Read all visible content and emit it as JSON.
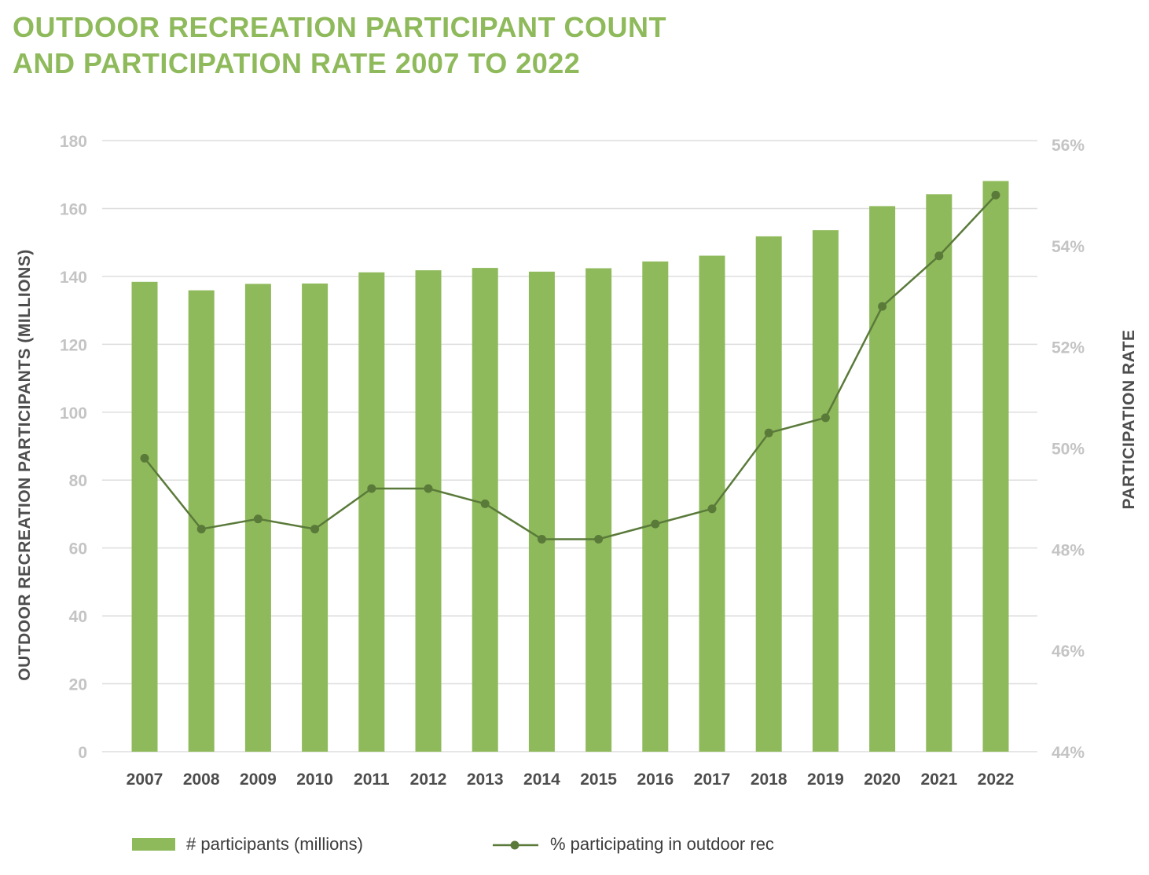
{
  "title_lines": [
    "OUTDOOR RECREATION PARTICIPANT COUNT",
    "AND PARTICIPATION RATE 2007 TO 2022"
  ],
  "colors": {
    "bar": "#8fba5b",
    "line": "#5a7a3a",
    "title": "#8fba5b",
    "grid": "#dedede"
  },
  "chart_data": {
    "type": "bar",
    "title": "OUTDOOR RECREATION PARTICIPANT COUNT AND PARTICIPATION RATE 2007 TO 2022",
    "categories": [
      "2007",
      "2008",
      "2009",
      "2010",
      "2011",
      "2012",
      "2013",
      "2014",
      "2015",
      "2016",
      "2017",
      "2018",
      "2019",
      "2020",
      "2021",
      "2022"
    ],
    "series": [
      {
        "name": "# participants (millions)",
        "type": "bar",
        "axis": "left",
        "values": [
          138.4,
          135.9,
          137.8,
          137.9,
          141.2,
          141.8,
          142.5,
          141.4,
          142.4,
          144.4,
          146.1,
          151.8,
          153.6,
          160.7,
          164.2,
          168.1
        ]
      },
      {
        "name": "% participating in outdoor rec",
        "type": "line",
        "axis": "right",
        "values": [
          49.8,
          48.4,
          48.6,
          48.4,
          49.2,
          49.2,
          48.9,
          48.2,
          48.2,
          48.5,
          48.8,
          50.3,
          50.6,
          52.8,
          53.8,
          55.0
        ]
      }
    ],
    "ylabel": "OUTDOOR RECREATION PARTICIPANTS (MILLIONS)",
    "y2label": "PARTICIPATION RATE",
    "ylim": [
      0,
      180
    ],
    "yticks": [
      "0",
      "20",
      "40",
      "60",
      "80",
      "100",
      "120",
      "140",
      "160",
      "180"
    ],
    "y2lim": [
      44,
      56
    ],
    "y2ticks": [
      "44%",
      "46%",
      "48%",
      "50%",
      "52%",
      "54%",
      "56%"
    ],
    "grid": true,
    "legend_position": "bottom"
  }
}
